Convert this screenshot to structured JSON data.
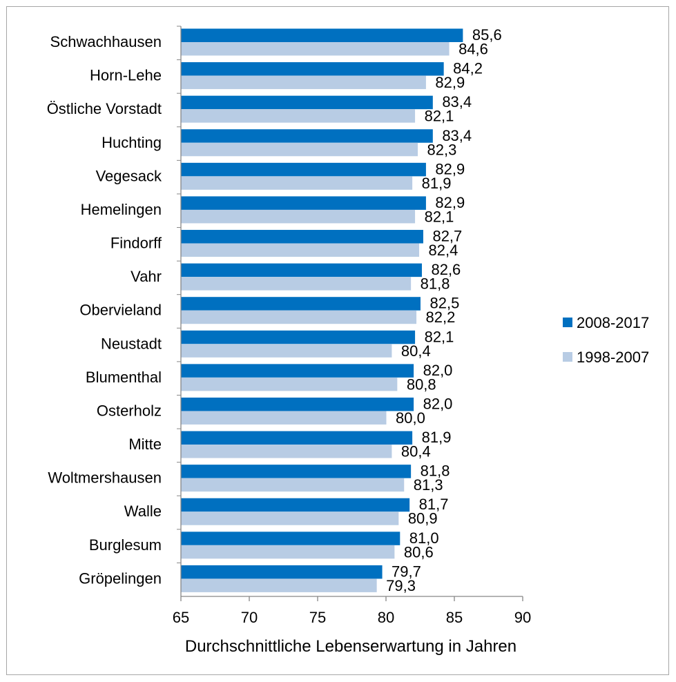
{
  "chart_data": {
    "type": "bar",
    "orientation": "horizontal",
    "title": "",
    "xlabel": "Durchschnittliche Lebenserwartung in Jahren",
    "ylabel": "",
    "xlim": [
      65,
      90
    ],
    "xticks": [
      "65",
      "70",
      "75",
      "80",
      "85",
      "90"
    ],
    "grid": false,
    "legend_position": "right",
    "categories": [
      "Schwachhausen",
      "Horn-Lehe",
      "Östliche Vorstadt",
      "Huchting",
      "Vegesack",
      "Hemelingen",
      "Findorff",
      "Vahr",
      "Obervieland",
      "Neustadt",
      "Blumenthal",
      "Osterholz",
      "Mitte",
      "Woltmershausen",
      "Walle",
      "Burglesum",
      "Gröpelingen"
    ],
    "series": [
      {
        "name": "2008-2017",
        "color": "#0070c0",
        "values": [
          85.6,
          84.2,
          83.4,
          83.4,
          82.9,
          82.9,
          82.7,
          82.6,
          82.5,
          82.1,
          82.0,
          82.0,
          81.9,
          81.8,
          81.7,
          81.0,
          79.7
        ],
        "labels": [
          "85,6",
          "84,2",
          "83,4",
          "83,4",
          "82,9",
          "82,9",
          "82,7",
          "82,6",
          "82,5",
          "82,1",
          "82,0",
          "82,0",
          "81,9",
          "81,8",
          "81,7",
          "81,0",
          "79,7"
        ]
      },
      {
        "name": "1998-2007",
        "color": "#b8cce4",
        "values": [
          84.6,
          82.9,
          82.1,
          82.3,
          81.9,
          82.1,
          82.4,
          81.8,
          82.2,
          80.4,
          80.8,
          80.0,
          80.4,
          81.3,
          80.9,
          80.6,
          79.3
        ],
        "labels": [
          "84,6",
          "82,9",
          "82,1",
          "82,3",
          "81,9",
          "82,1",
          "82,4",
          "81,8",
          "82,2",
          "80,4",
          "80,8",
          "80,0",
          "80,4",
          "81,3",
          "80,9",
          "80,6",
          "79,3"
        ]
      }
    ]
  }
}
